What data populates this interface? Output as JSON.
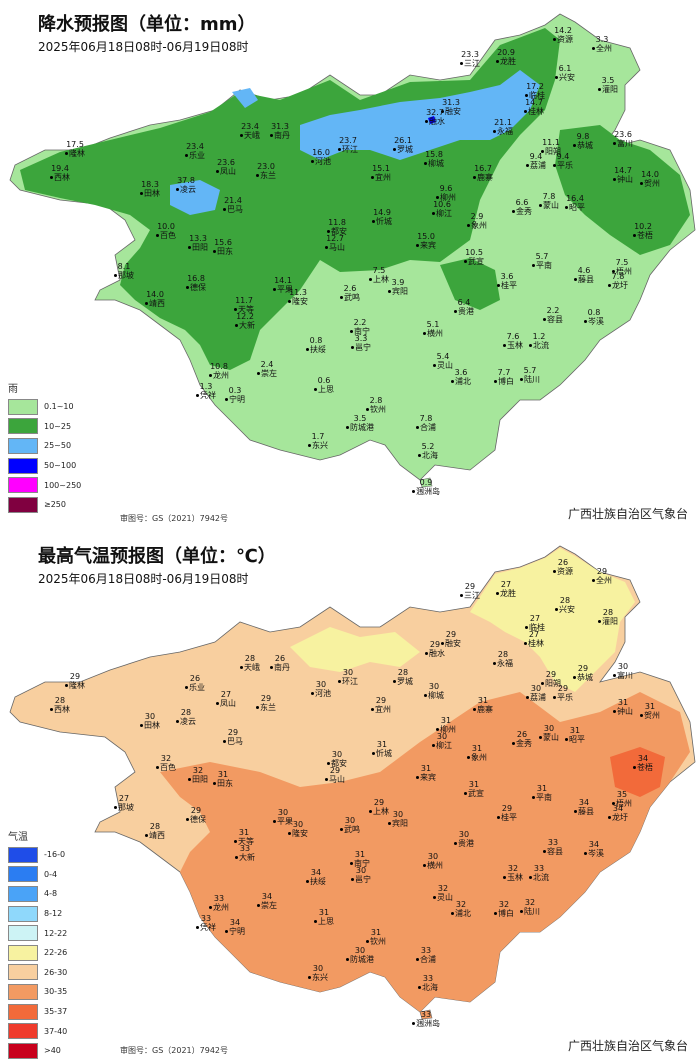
{
  "rain": {
    "title": "降水预报图（单位：mm）",
    "date": "2025年06月18日08时-06月19日08时",
    "legend_title": "雨",
    "legend": [
      {
        "label": "0.1~10",
        "color": "#a6e69b"
      },
      {
        "label": "10~25",
        "color": "#3ca53c"
      },
      {
        "label": "25~50",
        "color": "#63b6f6"
      },
      {
        "label": "50~100",
        "color": "#0000ff"
      },
      {
        "label": "100~250",
        "color": "#ff00ff"
      },
      {
        "label": "≥250",
        "color": "#800040"
      }
    ],
    "approval": "审图号：GS（2021）7942号",
    "agency": "广西壮族自治区气象台",
    "cities": [
      {
        "name": "资源",
        "value": "14.2"
      },
      {
        "name": "全州",
        "value": "3.3"
      },
      {
        "name": "三江",
        "value": "23.3"
      },
      {
        "name": "龙胜",
        "value": "20.9"
      },
      {
        "name": "兴安",
        "value": "6.1"
      },
      {
        "name": "灌阳",
        "value": "3.5"
      },
      {
        "name": "临桂",
        "value": "17.2"
      },
      {
        "name": "桂林",
        "value": "14.7"
      },
      {
        "name": "融安",
        "value": "31.3"
      },
      {
        "name": "融水",
        "value": "32.7"
      },
      {
        "name": "永福",
        "value": "21.1"
      },
      {
        "name": "隆林",
        "value": "17.5"
      },
      {
        "name": "乐业",
        "value": "23.4"
      },
      {
        "name": "天峨",
        "value": "23.4"
      },
      {
        "name": "南丹",
        "value": "31.3"
      },
      {
        "name": "环江",
        "value": "23.7"
      },
      {
        "name": "罗城",
        "value": "26.1"
      },
      {
        "name": "阳朔",
        "value": "11.1"
      },
      {
        "name": "恭城",
        "value": "9.8"
      },
      {
        "name": "富川",
        "value": "23.6"
      },
      {
        "name": "西林",
        "value": "19.4"
      },
      {
        "name": "凤山",
        "value": "23.6"
      },
      {
        "name": "东兰",
        "value": "23.0"
      },
      {
        "name": "河池",
        "value": "16.0"
      },
      {
        "name": "宜州",
        "value": "15.1"
      },
      {
        "name": "柳城",
        "value": "15.8"
      },
      {
        "name": "鹿寨",
        "value": "16.7"
      },
      {
        "name": "平乐",
        "value": "9.4"
      },
      {
        "name": "荔浦",
        "value": "9.4"
      },
      {
        "name": "钟山",
        "value": "14.7"
      },
      {
        "name": "贺州",
        "value": "14.0"
      },
      {
        "name": "凌云",
        "value": "37.8"
      },
      {
        "name": "田林",
        "value": "18.3"
      },
      {
        "name": "巴马",
        "value": "21.4"
      },
      {
        "name": "柳州",
        "value": "9.6"
      },
      {
        "name": "柳江",
        "value": "10.6"
      },
      {
        "name": "金秀",
        "value": "6.6"
      },
      {
        "name": "蒙山",
        "value": "7.8"
      },
      {
        "name": "昭平",
        "value": "16.4"
      },
      {
        "name": "百色",
        "value": "10.0"
      },
      {
        "name": "都安",
        "value": "11.8"
      },
      {
        "name": "忻城",
        "value": "14.9"
      },
      {
        "name": "象州",
        "value": "2.9"
      },
      {
        "name": "苍梧",
        "value": "10.2"
      },
      {
        "name": "田阳",
        "value": "13.3"
      },
      {
        "name": "田东",
        "value": "15.6"
      },
      {
        "name": "马山",
        "value": "12.7"
      },
      {
        "name": "来宾",
        "value": "15.0"
      },
      {
        "name": "武宣",
        "value": "10.5"
      },
      {
        "name": "平南",
        "value": "5.7"
      },
      {
        "name": "藤县",
        "value": "4.6"
      },
      {
        "name": "梧州",
        "value": "7.5"
      },
      {
        "name": "那坡",
        "value": "8.1"
      },
      {
        "name": "德保",
        "value": "16.8"
      },
      {
        "name": "上林",
        "value": "7.5"
      },
      {
        "name": "宾阳",
        "value": "3.9"
      },
      {
        "name": "桂平",
        "value": "3.6"
      },
      {
        "name": "龙圩",
        "value": "7.8"
      },
      {
        "name": "靖西",
        "value": "14.0"
      },
      {
        "name": "平果",
        "value": "14.1"
      },
      {
        "name": "隆安",
        "value": "11.3"
      },
      {
        "name": "武鸣",
        "value": "2.6"
      },
      {
        "name": "贵港",
        "value": "6.4"
      },
      {
        "name": "容县",
        "value": "2.2"
      },
      {
        "name": "岑溪",
        "value": "0.8"
      },
      {
        "name": "天等",
        "value": "11.7"
      },
      {
        "name": "大新",
        "value": "12.2"
      },
      {
        "name": "南宁",
        "value": "2.2"
      },
      {
        "name": "邕宁",
        "value": "3.3"
      },
      {
        "name": "横州",
        "value": "5.1"
      },
      {
        "name": "玉林",
        "value": "7.6"
      },
      {
        "name": "北流",
        "value": "1.2"
      },
      {
        "name": "扶绥",
        "value": "0.8"
      },
      {
        "name": "崇左",
        "value": "2.4"
      },
      {
        "name": "灵山",
        "value": "5.4"
      },
      {
        "name": "浦北",
        "value": "3.6"
      },
      {
        "name": "博白",
        "value": "7.7"
      },
      {
        "name": "陆川",
        "value": "5.7"
      },
      {
        "name": "龙州",
        "value": "10.8"
      },
      {
        "name": "凭祥",
        "value": "1.3"
      },
      {
        "name": "宁明",
        "value": "0.3"
      },
      {
        "name": "上思",
        "value": "0.6"
      },
      {
        "name": "钦州",
        "value": "2.8"
      },
      {
        "name": "防城港",
        "value": "3.5"
      },
      {
        "name": "合浦",
        "value": "7.8"
      },
      {
        "name": "东兴",
        "value": "1.7"
      },
      {
        "name": "北海",
        "value": "5.2"
      },
      {
        "name": "涠洲岛",
        "value": "0.9"
      }
    ]
  },
  "temp": {
    "title": "最高气温预报图（单位：℃）",
    "date": "2025年06月18日08时-06月19日08时",
    "legend_title": "气温",
    "legend": [
      {
        "label": "-16-0",
        "color": "#1f4de8"
      },
      {
        "label": "0-4",
        "color": "#2b7df2"
      },
      {
        "label": "4-8",
        "color": "#4aa3f7"
      },
      {
        "label": "8-12",
        "color": "#8fd8fb"
      },
      {
        "label": "12-22",
        "color": "#cdf3f5"
      },
      {
        "label": "22-26",
        "color": "#f7f2a0"
      },
      {
        "label": "26-30",
        "color": "#f8cf9f"
      },
      {
        "label": "30-35",
        "color": "#f29a62"
      },
      {
        "label": "35-37",
        "color": "#f26a3a"
      },
      {
        "label": "37-40",
        "color": "#ef3b2c"
      },
      {
        "label": ">40",
        "color": "#c8001c"
      }
    ],
    "approval": "审图号：GS（2021）7942号",
    "agency": "广西壮族自治区气象台",
    "cities": [
      {
        "name": "资源",
        "value": "26"
      },
      {
        "name": "全州",
        "value": "29"
      },
      {
        "name": "三江",
        "value": "29"
      },
      {
        "name": "龙胜",
        "value": "27"
      },
      {
        "name": "兴安",
        "value": "28"
      },
      {
        "name": "灌阳",
        "value": "28"
      },
      {
        "name": "临桂",
        "value": "27"
      },
      {
        "name": "桂林",
        "value": "27"
      },
      {
        "name": "融安",
        "value": "29"
      },
      {
        "name": "融水",
        "value": "29"
      },
      {
        "name": "永福",
        "value": "28"
      },
      {
        "name": "隆林",
        "value": "29"
      },
      {
        "name": "乐业",
        "value": "26"
      },
      {
        "name": "天峨",
        "value": "28"
      },
      {
        "name": "南丹",
        "value": "26"
      },
      {
        "name": "环江",
        "value": "30"
      },
      {
        "name": "罗城",
        "value": "28"
      },
      {
        "name": "阳朔",
        "value": "29"
      },
      {
        "name": "恭城",
        "value": "29"
      },
      {
        "name": "富川",
        "value": "30"
      },
      {
        "name": "西林",
        "value": "28"
      },
      {
        "name": "凤山",
        "value": "27"
      },
      {
        "name": "东兰",
        "value": "29"
      },
      {
        "name": "河池",
        "value": "30"
      },
      {
        "name": "宜州",
        "value": "29"
      },
      {
        "name": "柳城",
        "value": "30"
      },
      {
        "name": "鹿寨",
        "value": "31"
      },
      {
        "name": "平乐",
        "value": "29"
      },
      {
        "name": "荔浦",
        "value": "30"
      },
      {
        "name": "钟山",
        "value": "31"
      },
      {
        "name": "贺州",
        "value": "31"
      },
      {
        "name": "凌云",
        "value": "28"
      },
      {
        "name": "田林",
        "value": "30"
      },
      {
        "name": "巴马",
        "value": "29"
      },
      {
        "name": "柳州",
        "value": "31"
      },
      {
        "name": "柳江",
        "value": "30"
      },
      {
        "name": "金秀",
        "value": "26"
      },
      {
        "name": "蒙山",
        "value": "30"
      },
      {
        "name": "昭平",
        "value": "31"
      },
      {
        "name": "百色",
        "value": "32"
      },
      {
        "name": "都安",
        "value": "30"
      },
      {
        "name": "忻城",
        "value": "31"
      },
      {
        "name": "象州",
        "value": "31"
      },
      {
        "name": "苍梧",
        "value": "34"
      },
      {
        "name": "田阳",
        "value": "32"
      },
      {
        "name": "田东",
        "value": "31"
      },
      {
        "name": "马山",
        "value": "29"
      },
      {
        "name": "来宾",
        "value": "31"
      },
      {
        "name": "武宣",
        "value": "31"
      },
      {
        "name": "平南",
        "value": "31"
      },
      {
        "name": "藤县",
        "value": "34"
      },
      {
        "name": "梧州",
        "value": "35"
      },
      {
        "name": "那坡",
        "value": "27"
      },
      {
        "name": "德保",
        "value": "29"
      },
      {
        "name": "上林",
        "value": "29"
      },
      {
        "name": "宾阳",
        "value": "30"
      },
      {
        "name": "桂平",
        "value": "29"
      },
      {
        "name": "龙圩",
        "value": "34"
      },
      {
        "name": "靖西",
        "value": "28"
      },
      {
        "name": "平果",
        "value": "30"
      },
      {
        "name": "隆安",
        "value": "30"
      },
      {
        "name": "武鸣",
        "value": "30"
      },
      {
        "name": "贵港",
        "value": "30"
      },
      {
        "name": "容县",
        "value": "33"
      },
      {
        "name": "岑溪",
        "value": "34"
      },
      {
        "name": "天等",
        "value": "31"
      },
      {
        "name": "大新",
        "value": "33"
      },
      {
        "name": "南宁",
        "value": "31"
      },
      {
        "name": "邕宁",
        "value": "30"
      },
      {
        "name": "横州",
        "value": "30"
      },
      {
        "name": "玉林",
        "value": "32"
      },
      {
        "name": "北流",
        "value": "33"
      },
      {
        "name": "扶绥",
        "value": "34"
      },
      {
        "name": "崇左",
        "value": "34"
      },
      {
        "name": "灵山",
        "value": "32"
      },
      {
        "name": "浦北",
        "value": "32"
      },
      {
        "name": "博白",
        "value": "32"
      },
      {
        "name": "陆川",
        "value": "32"
      },
      {
        "name": "龙州",
        "value": "33"
      },
      {
        "name": "凭祥",
        "value": "33"
      },
      {
        "name": "宁明",
        "value": "34"
      },
      {
        "name": "上思",
        "value": "31"
      },
      {
        "name": "钦州",
        "value": "31"
      },
      {
        "name": "防城港",
        "value": "30"
      },
      {
        "name": "合浦",
        "value": "33"
      },
      {
        "name": "东兴",
        "value": "30"
      },
      {
        "name": "北海",
        "value": "33"
      },
      {
        "name": "涠洲岛",
        "value": "33"
      }
    ]
  }
}
